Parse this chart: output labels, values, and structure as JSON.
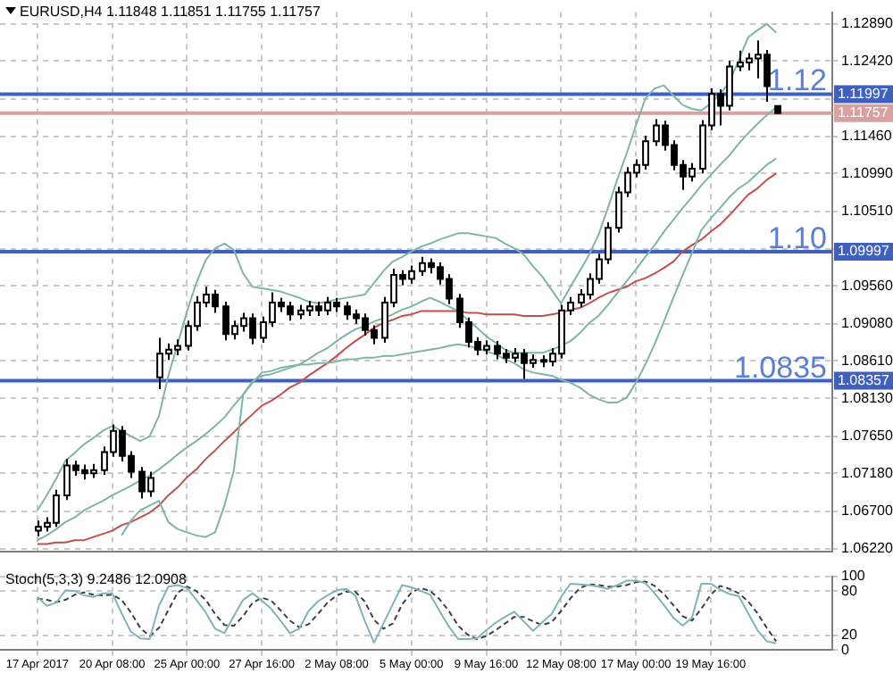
{
  "chart_data": [
    {
      "type": "candlestick",
      "title": "EURUSD,H4 1.11848 1.11851 1.11755 1.11757",
      "color": "#000000",
      "tick_labels": "y",
      "colors": [
        "#ffffff",
        "#ffffff",
        "#ffffff",
        "#ffffff",
        "#000000",
        "#000000",
        "#ffffff",
        "#ffffff",
        "#ffffff",
        "#000000",
        "#000000",
        "#000000",
        "#ffffff",
        "#ffffff",
        "#ffffff",
        "#ffffff",
        "#ffffff",
        "#ffffff",
        "#ffffff",
        "#000000",
        "#000000",
        "#ffffff",
        "#ffffff",
        "#000000",
        "#ffffff",
        "#ffffff",
        "#000000",
        "#000000",
        "#ffffff",
        "#ffffff",
        "#000000",
        "#ffffff",
        "#000000",
        "#000000",
        "#000000",
        "#000000",
        "#000000",
        "#ffffff",
        "#ffffff",
        "#000000",
        "#ffffff",
        "#ffffff",
        "#000000",
        "#000000",
        "#000000",
        "#000000",
        "#000000",
        "#000000",
        "#ffffff",
        "#000000",
        "#000000",
        "#ffffff",
        "#000000",
        "#ffffff",
        "#000000",
        "#ffffff",
        "#ffffff",
        "#ffffff",
        "#ffffff",
        "#ffffff",
        "#ffffff",
        "#ffffff",
        "#ffffff",
        "#ffffff",
        "#ffffff",
        "#ffffff",
        "#ffffff",
        "#000000",
        "#000000",
        "#000000",
        "#ffffff",
        "#ffffff",
        "#ffffff",
        "#000000",
        "#ffffff",
        "#ffffff",
        "#ffffff",
        "#ffffff",
        "#000000",
        "#000000"
      ],
      "grid": true,
      "categories": [
        null,
        null,
        null,
        null,
        null,
        null,
        null,
        null,
        null,
        null,
        null,
        null,
        null,
        null,
        null,
        null,
        null,
        null,
        null,
        null,
        null,
        null,
        null,
        null,
        null,
        null,
        null,
        null,
        null,
        null,
        null,
        null,
        null,
        null,
        null,
        null,
        null,
        null,
        null,
        null,
        null,
        null,
        null,
        null,
        null,
        null,
        null,
        null,
        null,
        null,
        null,
        null,
        null,
        null,
        null,
        null,
        null,
        null,
        null,
        null,
        null,
        null,
        null,
        null,
        null,
        null,
        null,
        null,
        null,
        null,
        null,
        null,
        null,
        null,
        null,
        null,
        null,
        null,
        null,
        null
      ],
      "ohlc": [
        [
          1.0645,
          1.0658,
          1.0638,
          1.065
        ],
        [
          1.065,
          1.0662,
          1.0644,
          1.0655
        ],
        [
          1.0655,
          1.0697,
          1.065,
          1.069
        ],
        [
          1.069,
          1.0736,
          1.0684,
          1.0728
        ],
        [
          1.0728,
          1.0734,
          1.0715,
          1.0722
        ],
        [
          1.0722,
          1.0729,
          1.071,
          1.0718
        ],
        [
          1.0718,
          1.073,
          1.0712,
          1.0722
        ],
        [
          1.0722,
          1.0752,
          1.0716,
          1.0745
        ],
        [
          1.0745,
          1.078,
          1.0739,
          1.0772
        ],
        [
          1.0772,
          1.0778,
          1.0733,
          1.074
        ],
        [
          1.074,
          1.0746,
          1.0712,
          1.072
        ],
        [
          1.072,
          1.0726,
          1.0686,
          1.0695
        ],
        [
          1.0695,
          1.072,
          1.0688,
          1.0712
        ],
        [
          1.084,
          1.089,
          1.0825,
          1.087
        ],
        [
          1.087,
          1.0883,
          1.0862,
          1.0875
        ],
        [
          1.0875,
          1.0888,
          1.0868,
          1.088
        ],
        [
          1.088,
          1.0912,
          1.0874,
          1.0905
        ],
        [
          1.0905,
          1.0943,
          1.0899,
          1.0935
        ],
        [
          1.0935,
          1.0955,
          1.0929,
          1.0945
        ],
        [
          1.0945,
          1.0951,
          1.0922,
          1.093
        ],
        [
          1.093,
          1.0936,
          1.0887,
          1.0895
        ],
        [
          1.0895,
          1.0912,
          1.0888,
          1.0905
        ],
        [
          1.0905,
          1.0922,
          1.0898,
          1.0915
        ],
        [
          1.0915,
          1.0921,
          1.0882,
          1.089
        ],
        [
          1.089,
          1.0917,
          1.0884,
          1.091
        ],
        [
          1.091,
          1.0948,
          1.0904,
          1.0935
        ],
        [
          1.0935,
          1.0941,
          1.0923,
          1.093
        ],
        [
          1.093,
          1.0936,
          1.0912,
          1.092
        ],
        [
          1.092,
          1.0932,
          1.0914,
          1.0925
        ],
        [
          1.0925,
          1.0937,
          1.0918,
          1.093
        ],
        [
          1.093,
          1.0936,
          1.0918,
          1.0925
        ],
        [
          1.0925,
          1.0942,
          1.0919,
          1.0935
        ],
        [
          1.0935,
          1.0941,
          1.0923,
          1.093
        ],
        [
          1.093,
          1.0936,
          1.0913,
          1.092
        ],
        [
          1.092,
          1.0926,
          1.0908,
          1.0915
        ],
        [
          1.0915,
          1.0921,
          1.0893,
          1.09
        ],
        [
          1.09,
          1.0906,
          1.0882,
          1.089
        ],
        [
          1.089,
          1.0942,
          1.0884,
          1.0935
        ],
        [
          1.0935,
          1.0978,
          1.0929,
          1.097
        ],
        [
          1.097,
          1.0976,
          1.0957,
          1.0965
        ],
        [
          1.0965,
          1.0982,
          1.0959,
          1.0975
        ],
        [
          1.0975,
          1.0993,
          1.0969,
          1.0985
        ],
        [
          1.0985,
          1.0991,
          1.0972,
          1.098
        ],
        [
          1.098,
          1.0986,
          1.0958,
          1.0965
        ],
        [
          1.0965,
          1.0971,
          1.0933,
          1.094
        ],
        [
          1.094,
          1.0946,
          1.0903,
          1.091
        ],
        [
          1.091,
          1.0916,
          1.0878,
          1.0885
        ],
        [
          1.0885,
          1.0891,
          1.0868,
          1.0875
        ],
        [
          1.0875,
          1.0887,
          1.0869,
          1.088
        ],
        [
          1.088,
          1.0886,
          1.0863,
          1.087
        ],
        [
          1.087,
          1.0876,
          1.0858,
          1.0865
        ],
        [
          1.0865,
          1.0877,
          1.0859,
          1.087
        ],
        [
          1.087,
          1.0876,
          1.0838,
          1.0858
        ],
        [
          1.0858,
          1.0869,
          1.0852,
          1.0862
        ],
        [
          1.0862,
          1.0868,
          1.0853,
          1.086
        ],
        [
          1.086,
          1.0877,
          1.0854,
          1.087
        ],
        [
          1.087,
          1.0932,
          1.0864,
          1.0925
        ],
        [
          1.0925,
          1.0942,
          1.0919,
          1.0935
        ],
        [
          1.0935,
          1.0952,
          1.0929,
          1.0945
        ],
        [
          1.0945,
          1.0972,
          1.0939,
          1.0965
        ],
        [
          1.0965,
          1.0997,
          1.0959,
          1.099
        ],
        [
          1.099,
          1.1037,
          1.0984,
          1.103
        ],
        [
          1.103,
          1.1082,
          1.1024,
          1.1075
        ],
        [
          1.1075,
          1.1107,
          1.1069,
          1.11
        ],
        [
          1.11,
          1.1117,
          1.1094,
          1.111
        ],
        [
          1.111,
          1.1147,
          1.1104,
          1.114
        ],
        [
          1.114,
          1.1168,
          1.1134,
          1.116
        ],
        [
          1.116,
          1.1166,
          1.1128,
          1.1135
        ],
        [
          1.1135,
          1.1141,
          1.1103,
          1.111
        ],
        [
          1.111,
          1.1116,
          1.1078,
          1.1095
        ],
        [
          1.1095,
          1.1112,
          1.1089,
          1.1105
        ],
        [
          1.1105,
          1.1167,
          1.1099,
          1.116
        ],
        [
          1.116,
          1.1207,
          1.1154,
          1.12
        ],
        [
          1.12,
          1.1206,
          1.116,
          1.1185
        ],
        [
          1.1185,
          1.1242,
          1.1179,
          1.1235
        ],
        [
          1.1235,
          1.1255,
          1.1229,
          1.124
        ],
        [
          1.124,
          1.1252,
          1.123,
          1.1245
        ],
        [
          1.1245,
          1.1268,
          1.122,
          1.125
        ],
        [
          1.125,
          1.1256,
          1.119,
          1.121
        ],
        [
          1.11848,
          1.11851,
          1.11755,
          1.11757
        ]
      ],
      "series": [
        {
          "type": "line",
          "color": "#7fb5a6",
          "values": [
            1.0671,
            1.069,
            1.0711,
            1.0734,
            1.0744,
            1.0755,
            1.0763,
            1.0772,
            1.0778,
            1.0772,
            1.0765,
            1.0759,
            1.0765,
            1.0791,
            1.0842,
            1.0882,
            1.0924,
            1.096,
            1.0989,
            1.1004,
            1.101,
            1.1002,
            1.0972,
            1.0955,
            1.0953,
            1.0951,
            1.0949,
            1.0945,
            1.0941,
            1.0936,
            1.0934,
            1.0936,
            1.0939,
            1.0941,
            1.0943,
            1.0945,
            1.096,
            1.0975,
            1.0987,
            1.0993,
            1.1,
            1.1006,
            1.101,
            1.1015,
            1.1019,
            1.1023,
            1.1023,
            1.1021,
            1.1019,
            1.1017,
            1.101,
            1.1004,
            1.0996,
            1.0981,
            1.0968,
            1.0951,
            1.0934,
            1.0955,
            1.0975,
            1.0996,
            1.1021,
            1.1055,
            1.1091,
            1.1124,
            1.116,
            1.1194,
            1.1207,
            1.1211,
            1.1198,
            1.1186,
            1.1181,
            1.1179,
            1.1188,
            1.12,
            1.1215,
            1.1243,
            1.1272,
            1.1281,
            1.1289,
            1.1278
          ]
        },
        {
          "type": "line",
          "color": "#7fb5a6",
          "values": [
            1.0633,
            1.0639,
            1.0647,
            1.0656,
            1.0662,
            1.0671,
            1.0677,
            1.0683,
            1.069,
            1.0696,
            1.0702,
            1.0709,
            1.0715,
            1.0723,
            1.0732,
            1.0742,
            1.0751,
            1.0759,
            1.0768,
            1.0778,
            1.0789,
            1.0804,
            1.0818,
            1.0835,
            1.0842,
            1.0844,
            1.0848,
            1.0852,
            1.0856,
            1.0863,
            1.0871,
            1.0877,
            1.0886,
            1.0894,
            1.0901,
            1.0905,
            1.0911,
            1.0915,
            1.092,
            1.0926,
            1.093,
            1.0936,
            1.0941,
            1.0936,
            1.093,
            1.0924,
            1.0913,
            1.0903,
            1.0892,
            1.0884,
            1.0875,
            1.0871,
            1.0871,
            1.0871,
            1.0871,
            1.0875,
            1.088,
            1.0886,
            1.0896,
            1.0909,
            1.0918,
            1.0932,
            1.0947,
            1.0962,
            1.0977,
            1.0993,
            1.1008,
            1.1025,
            1.104,
            1.1055,
            1.1069,
            1.1084,
            1.1097,
            1.111,
            1.1122,
            1.1137,
            1.115,
            1.1162,
            1.1173,
            1.1183
          ]
        },
        {
          "type": "line",
          "color": "#7fb5a6",
          "values": [
            null,
            null,
            null,
            null,
            null,
            null,
            null,
            null,
            null,
            1.0639,
            1.0658,
            1.0671,
            1.0677,
            1.0683,
            1.0656,
            1.0647,
            1.0643,
            1.0639,
            1.0637,
            1.0643,
            1.0677,
            1.0721,
            1.0818,
            1.0833,
            1.0846,
            1.0848,
            1.0852,
            1.0854,
            1.0856,
            1.0856,
            1.0858,
            1.0858,
            1.086,
            1.0863,
            1.0863,
            1.0865,
            1.0865,
            1.0867,
            1.0867,
            1.0869,
            1.0871,
            1.0873,
            1.0875,
            1.0877,
            1.088,
            1.0882,
            1.088,
            1.0877,
            1.0873,
            1.0869,
            1.0863,
            1.0858,
            1.085,
            1.0846,
            1.0844,
            1.0842,
            1.0837,
            1.0833,
            1.0827,
            1.0818,
            1.0812,
            1.0808,
            1.0808,
            1.0814,
            1.0833,
            1.0856,
            1.0882,
            1.0911,
            1.0941,
            1.097,
            1.0998,
            1.1027,
            1.1042,
            1.1055,
            1.1069,
            1.108,
            1.1088,
            1.1099,
            1.111,
            1.1118
          ]
        },
        {
          "type": "line",
          "color": "#c0504d",
          "values": [
            1.0628,
            1.0628,
            1.063,
            1.063,
            1.0633,
            1.0633,
            1.0637,
            1.0641,
            1.0645,
            1.0652,
            1.0656,
            1.0662,
            1.0668,
            1.0677,
            1.069,
            1.07,
            1.0713,
            1.0723,
            1.0736,
            1.0747,
            1.0759,
            1.077,
            1.0782,
            1.0793,
            1.0804,
            1.081,
            1.0818,
            1.0827,
            1.0833,
            1.0842,
            1.085,
            1.0858,
            1.0867,
            1.0877,
            1.0886,
            1.0894,
            1.0903,
            1.0909,
            1.0913,
            1.0918,
            1.092,
            1.0924,
            1.0924,
            1.0924,
            1.0924,
            1.0924,
            1.0922,
            1.0922,
            1.092,
            1.092,
            1.092,
            1.092,
            1.0918,
            1.0918,
            1.0918,
            1.092,
            1.0922,
            1.0926,
            1.0928,
            1.0934,
            1.0941,
            1.0947,
            1.0951,
            1.0955,
            1.0962,
            1.0966,
            1.0972,
            1.0979,
            1.0987,
            1.1,
            1.1008,
            1.1015,
            1.1025,
            1.1034,
            1.1046,
            1.1059,
            1.1072,
            1.108,
            1.1091,
            1.1099
          ]
        }
      ],
      "ylim": [
        1.0618,
        1.1304
      ],
      "yticks": [
        {
          "value": 1.0622,
          "label": "1.06220"
        },
        {
          "value": 1.067,
          "label": "1.06700"
        },
        {
          "value": 1.0718,
          "label": "1.07180"
        },
        {
          "value": 1.0765,
          "label": "1.07650"
        },
        {
          "value": 1.0813,
          "label": "1.08130"
        },
        {
          "value": 1.0861,
          "label": "1.08610"
        },
        {
          "value": 1.0908,
          "label": "1.09080"
        },
        {
          "value": 1.0956,
          "label": "1.09560"
        },
        {
          "value": 1.1003,
          "label": null
        },
        {
          "value": 1.1051,
          "label": "1.10510"
        },
        {
          "value": 1.1099,
          "label": "1.10990"
        },
        {
          "value": 1.1146,
          "label": "1.11460"
        },
        {
          "value": 1.1194,
          "label": null
        },
        {
          "value": 1.1242,
          "label": "1.12420"
        },
        {
          "value": 1.1289,
          "label": "1.12890"
        }
      ],
      "ref_lines": [
        {
          "axis": "y",
          "value": 1.11997,
          "label": "1.11997",
          "color": "#4060c0"
        },
        {
          "axis": "y",
          "value": 1.09997,
          "label": "1.09997",
          "color": "#4060c0"
        },
        {
          "axis": "y",
          "value": 1.08357,
          "label": "1.08357",
          "color": "#4060c0"
        },
        {
          "axis": "y",
          "value": 1.11757,
          "label": "1.11757",
          "color": "#d8a0a0"
        }
      ],
      "annotations": [
        {
          "text": "1.12",
          "y": 1.12
        },
        {
          "text": "1.10",
          "y": 1.1
        },
        {
          "text": "1.0835",
          "y": 1.0835
        }
      ]
    },
    {
      "type": "line",
      "title": "Stoch(5,3,3) 9.2486 12.0908",
      "grid": true,
      "categories": [
        "17 Apr 2017",
        null,
        null,
        null,
        null,
        null,
        null,
        null,
        "20 Apr 08:00",
        null,
        null,
        null,
        null,
        null,
        null,
        null,
        "25 Apr 00:00",
        null,
        null,
        null,
        null,
        null,
        null,
        null,
        "27 Apr 16:00",
        null,
        null,
        null,
        null,
        null,
        null,
        null,
        "2 May 08:00",
        null,
        null,
        null,
        null,
        null,
        null,
        null,
        "5 May 00:00",
        null,
        null,
        null,
        null,
        null,
        null,
        null,
        "9 May 16:00",
        null,
        null,
        null,
        null,
        null,
        null,
        null,
        "12 May 08:00",
        null,
        null,
        null,
        null,
        null,
        null,
        null,
        "17 May 00:00",
        null,
        null,
        null,
        null,
        null,
        null,
        null,
        "19 May 16:00",
        null,
        null,
        null,
        null,
        null,
        null,
        null
      ],
      "series": [
        {
          "color": "#7fb5b5",
          "line_style": "solid",
          "values": [
            72,
            60,
            64,
            81,
            80,
            74,
            72,
            77,
            77,
            50,
            25,
            16,
            15,
            60,
            86,
            88,
            84,
            68,
            51,
            29,
            23,
            46,
            68,
            77,
            67,
            56,
            40,
            23,
            29,
            53,
            66,
            74,
            81,
            83,
            74,
            40,
            10,
            36,
            62,
            88,
            85,
            80,
            75,
            53,
            32,
            15,
            15,
            16,
            27,
            37,
            45,
            52,
            39,
            26,
            38,
            49,
            72,
            90,
            89,
            88,
            86,
            83,
            88,
            94,
            94,
            91,
            77,
            61,
            44,
            33,
            44,
            90,
            90,
            82,
            76,
            73,
            50,
            27,
            12,
            9.2486
          ]
        },
        {
          "color": "#404040",
          "line_style": "dashed",
          "values": [
            70,
            68,
            65,
            68,
            75,
            78,
            75,
            74,
            75,
            68,
            51,
            30,
            19,
            30,
            54,
            78,
            86,
            80,
            68,
            49,
            34,
            33,
            46,
            64,
            71,
            67,
            54,
            40,
            31,
            35,
            49,
            64,
            74,
            79,
            79,
            66,
            41,
            29,
            36,
            62,
            78,
            84,
            80,
            69,
            53,
            33,
            21,
            15,
            19,
            27,
            36,
            45,
            45,
            39,
            34,
            38,
            53,
            70,
            84,
            89,
            88,
            86,
            86,
            88,
            92,
            93,
            87,
            76,
            61,
            46,
            40,
            56,
            75,
            87,
            83,
            77,
            66,
            50,
            30,
            12.0908
          ]
        }
      ],
      "ylim": [
        0,
        100
      ],
      "yticks": [
        0,
        20,
        80,
        100
      ]
    }
  ]
}
